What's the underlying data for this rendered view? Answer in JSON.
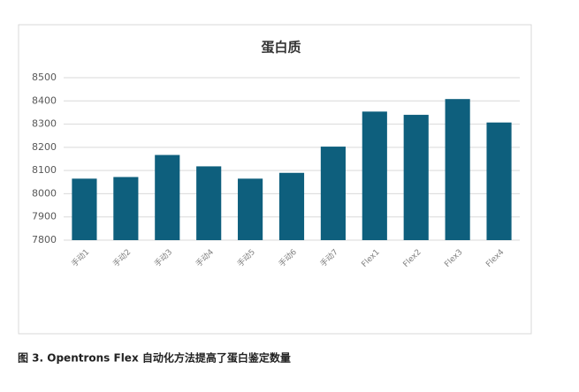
{
  "chart_data": {
    "type": "bar",
    "title": "蛋白质",
    "categories": [
      "手动1",
      "手动2",
      "手动3",
      "手动4",
      "手动5",
      "手动6",
      "手动7",
      "Flex1",
      "Flex2",
      "Flex3",
      "Flex4"
    ],
    "values": [
      8065,
      8072,
      8167,
      8118,
      8065,
      8090,
      8203,
      8354,
      8340,
      8408,
      8307
    ],
    "color": "#0e5f7d",
    "ylim": [
      7800,
      8500
    ],
    "yticks": [
      7800,
      7900,
      8000,
      8100,
      8200,
      8300,
      8400,
      8500
    ],
    "grid": true
  },
  "caption": "图 3. Opentrons Flex 自动化方法提高了蛋白鉴定数量"
}
